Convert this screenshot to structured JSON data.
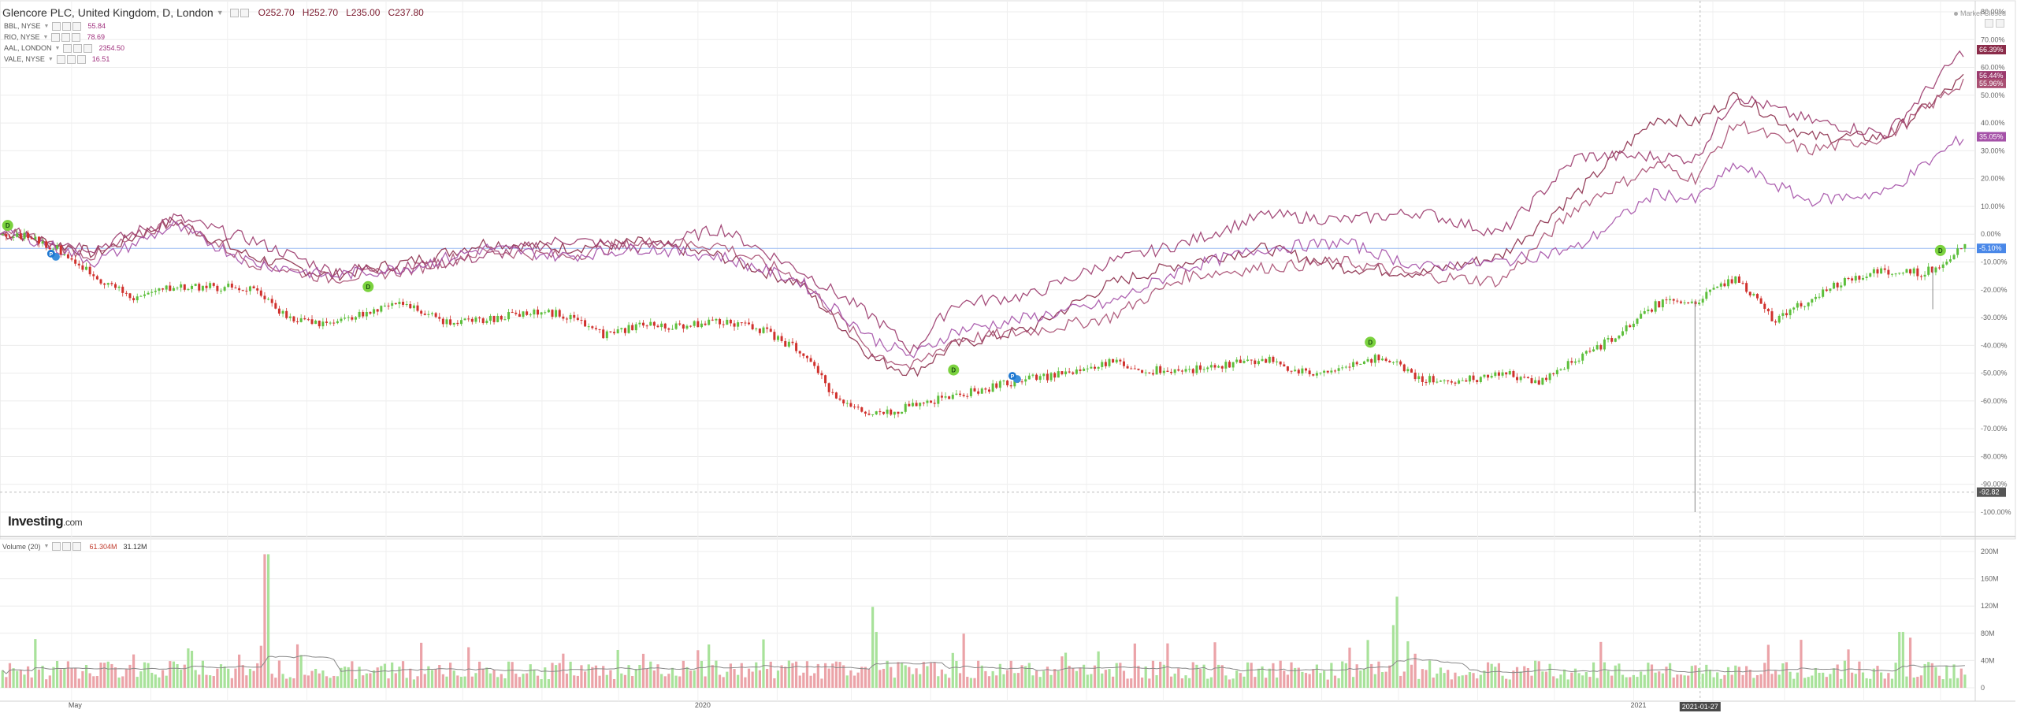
{
  "header": {
    "title": "Glencore PLC, United Kingdom, D, London",
    "open": "O252.70",
    "high": "H252.70",
    "low": "L235.00",
    "close": "C237.80"
  },
  "comparisons": [
    {
      "label": "BBL, NYSE",
      "value": "55.84"
    },
    {
      "label": "RIO, NYSE",
      "value": "78.69"
    },
    {
      "label": "AAL, LONDON",
      "value": "2354.50"
    },
    {
      "label": "VALE, NYSE",
      "value": "16.51"
    }
  ],
  "market_status": "Market Closed",
  "logo": {
    "brand": "Investing",
    "domain": ".com"
  },
  "volume_header": {
    "label": "Volume (20)",
    "v1": "61.304M",
    "v2": "31.12M"
  },
  "colors": {
    "up": "#5cbf3b",
    "down": "#d0312d",
    "vol_up": "#a8e29a",
    "vol_down": "#eba3a8",
    "cmp1": "#8b2c4a",
    "cmp2": "#9b3a6d",
    "cmp3": "#a94f72",
    "cmp4": "#a552a8",
    "grid": "#ececec",
    "current": "#9bbcf2"
  },
  "chart_data": [
    {
      "type": "line",
      "y_axis": {
        "unit": "%",
        "ticks": [
          "80.00%",
          "70.00%",
          "60.00%",
          "50.00%",
          "40.00%",
          "30.00%",
          "20.00%",
          "10.00%",
          "0.00%",
          "-10.00%",
          "-20.00%",
          "-30.00%",
          "-40.00%",
          "-50.00%",
          "-60.00%",
          "-70.00%",
          "-80.00%",
          "-90.00%",
          "-100.00%"
        ],
        "ylim": [
          -100,
          80
        ]
      },
      "x_axis": {
        "ticks": [
          "May",
          "2020",
          "2021"
        ],
        "cursor_label": "2021-01-27"
      },
      "price_labels": [
        "66.39%",
        "56.44%",
        "55.96%",
        "35.05%",
        "-5.10%",
        "-92.82"
      ],
      "main_series": {
        "name": "Glencore PLC",
        "x": [
          "2019-04-10",
          "2019-04-25",
          "2019-05-10",
          "2019-05-25",
          "2019-06-10",
          "2019-06-25",
          "2019-07-10",
          "2019-07-25",
          "2019-08-10",
          "2019-08-25",
          "2019-09-10",
          "2019-09-25",
          "2019-10-10",
          "2019-10-25",
          "2019-11-10",
          "2019-11-25",
          "2019-12-10",
          "2019-12-25",
          "2020-01-10",
          "2020-01-25",
          "2020-02-10",
          "2020-02-25",
          "2020-03-10",
          "2020-03-25",
          "2020-04-10",
          "2020-04-25",
          "2020-05-10",
          "2020-05-25",
          "2020-06-10",
          "2020-06-25",
          "2020-07-10",
          "2020-07-25",
          "2020-08-10",
          "2020-08-25",
          "2020-09-10",
          "2020-09-25",
          "2020-10-10",
          "2020-10-25",
          "2020-11-10",
          "2020-11-25",
          "2020-12-10",
          "2020-12-25",
          "2021-01-10",
          "2021-01-25",
          "2021-02-10",
          "2021-02-25",
          "2021-03-10",
          "2021-03-25",
          "2021-04-10",
          "2021-04-25",
          "2021-05-10"
        ],
        "values": [
          0,
          -5,
          -15,
          -23,
          -19,
          -19,
          -19,
          -30,
          -33,
          -28,
          -25,
          -32,
          -31,
          -28,
          -29,
          -36,
          -33,
          -33,
          -31,
          -34,
          -42,
          -60,
          -65,
          -62,
          -58,
          -55,
          -52,
          -50,
          -46,
          -49,
          -49,
          -47,
          -45,
          -50,
          -48,
          -44,
          -52,
          -53,
          -50,
          -53,
          -45,
          -37,
          -25,
          -24,
          -16,
          -31,
          -24,
          -16,
          -13,
          -14,
          -5
        ]
      },
      "series": [
        {
          "name": "BBL, NYSE",
          "x": [
            "2019-04-10",
            "2019-05-10",
            "2019-06-10",
            "2019-07-10",
            "2019-08-10",
            "2019-09-10",
            "2019-10-10",
            "2019-11-10",
            "2019-12-10",
            "2020-01-10",
            "2020-02-10",
            "2020-03-10",
            "2020-03-25",
            "2020-04-10",
            "2020-05-10",
            "2020-06-10",
            "2020-07-10",
            "2020-08-10",
            "2020-09-10",
            "2020-10-10",
            "2020-11-10",
            "2020-12-10",
            "2021-01-10",
            "2021-01-25",
            "2021-02-10",
            "2021-03-10",
            "2021-04-10",
            "2021-05-10"
          ],
          "values": [
            0,
            -7,
            5,
            -8,
            -15,
            -10,
            -3,
            -5,
            -3,
            -8,
            -18,
            -45,
            -50,
            -40,
            -34,
            -18,
            -10,
            -5,
            -12,
            -14,
            -8,
            15,
            42,
            40,
            50,
            35,
            35,
            56
          ]
        },
        {
          "name": "RIO, NYSE",
          "x": [
            "2019-04-10",
            "2019-05-10",
            "2019-06-10",
            "2019-07-10",
            "2019-08-10",
            "2019-09-10",
            "2019-10-10",
            "2019-11-10",
            "2019-12-10",
            "2020-01-10",
            "2020-02-10",
            "2020-03-10",
            "2020-03-25",
            "2020-04-10",
            "2020-05-10",
            "2020-06-10",
            "2020-07-10",
            "2020-08-10",
            "2020-09-10",
            "2020-10-10",
            "2020-11-10",
            "2020-12-10",
            "2021-01-10",
            "2021-01-25",
            "2021-02-10",
            "2021-03-10",
            "2021-04-10",
            "2021-05-10"
          ],
          "values": [
            0,
            -5,
            6,
            -2,
            -13,
            -12,
            -8,
            -2,
            -5,
            2,
            -13,
            -30,
            -42,
            -25,
            -22,
            -10,
            -3,
            7,
            5,
            8,
            0,
            28,
            28,
            27,
            50,
            41,
            36,
            66
          ]
        },
        {
          "name": "AAL, LONDON",
          "x": [
            "2019-04-10",
            "2019-05-10",
            "2019-06-10",
            "2019-07-10",
            "2019-08-10",
            "2019-09-10",
            "2019-10-10",
            "2019-11-10",
            "2019-12-10",
            "2020-01-10",
            "2020-02-10",
            "2020-03-10",
            "2020-03-25",
            "2020-04-10",
            "2020-05-10",
            "2020-06-10",
            "2020-07-10",
            "2020-08-10",
            "2020-09-10",
            "2020-10-10",
            "2020-11-10",
            "2020-12-10",
            "2021-01-10",
            "2021-01-25",
            "2021-02-10",
            "2021-03-10",
            "2021-04-10",
            "2021-05-10"
          ],
          "values": [
            0,
            -8,
            5,
            -10,
            -16,
            -13,
            -6,
            -8,
            -3,
            -4,
            -16,
            -43,
            -48,
            -38,
            -35,
            -30,
            -15,
            -12,
            -10,
            -15,
            -17,
            10,
            25,
            20,
            40,
            30,
            35,
            55
          ]
        },
        {
          "name": "VALE, NYSE",
          "x": [
            "2019-04-10",
            "2019-05-10",
            "2019-06-10",
            "2019-07-10",
            "2019-08-10",
            "2019-09-10",
            "2019-10-10",
            "2019-11-10",
            "2019-12-10",
            "2020-01-10",
            "2020-02-10",
            "2020-03-10",
            "2020-03-25",
            "2020-04-10",
            "2020-05-10",
            "2020-06-10",
            "2020-07-10",
            "2020-08-10",
            "2020-09-10",
            "2020-10-10",
            "2020-11-10",
            "2020-12-10",
            "2021-01-10",
            "2021-01-25",
            "2021-02-10",
            "2021-03-10",
            "2021-04-10",
            "2021-05-10"
          ],
          "values": [
            0,
            -10,
            3,
            -10,
            -15,
            -12,
            -5,
            -8,
            -5,
            -8,
            -17,
            -38,
            -44,
            -35,
            -30,
            -25,
            -12,
            -5,
            -3,
            -12,
            -10,
            -5,
            15,
            12,
            25,
            12,
            15,
            35
          ]
        }
      ]
    },
    {
      "type": "bar",
      "name": "Volume (20)",
      "y_axis": {
        "ticks": [
          "200M",
          "160M",
          "120M",
          "80M",
          "40M",
          "0"
        ],
        "ylim": [
          0,
          200
        ]
      },
      "peaks_M": [
        {
          "x": "2019-07-16",
          "value": 196
        },
        {
          "x": "2020-03-10",
          "value": 82
        },
        {
          "x": "2020-09-30",
          "value": 92
        },
        {
          "x": "2021-04-16",
          "value": 82
        }
      ],
      "typical_M": 30
    }
  ],
  "dividend_markers": [
    "D",
    "D",
    "D",
    "D",
    "D"
  ],
  "split_markers": [
    "P",
    "P"
  ]
}
